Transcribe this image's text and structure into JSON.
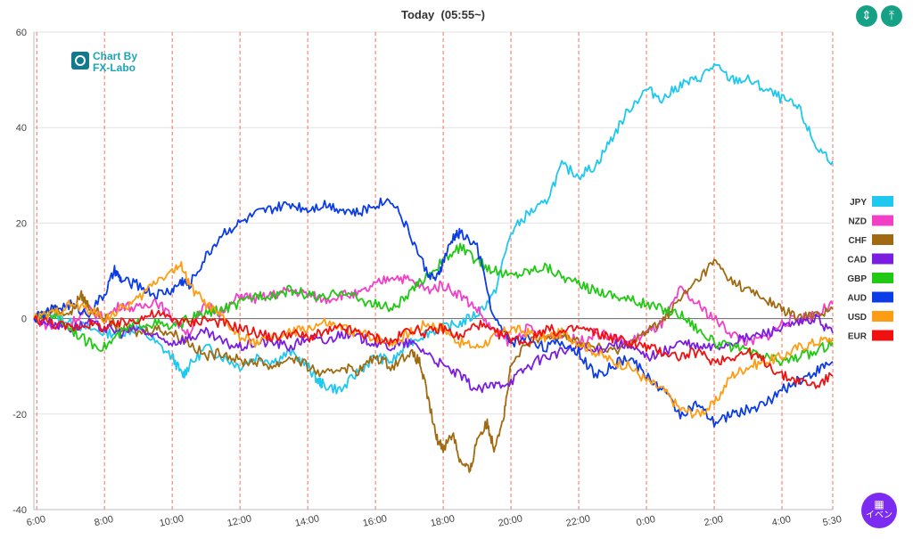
{
  "header": {
    "title": "Today  (05:55~)"
  },
  "logo": {
    "line1": "Chart By",
    "line2": "FX-Labo"
  },
  "toolbar": {
    "compress_icon": "compress-vertical-icon",
    "expand_icon": "expand-vertical-icon"
  },
  "event_button": {
    "label": "イベン",
    "icon": "calendar-icon"
  },
  "chart_data": {
    "type": "line",
    "title": "Today  (05:55~)",
    "xlabel": "",
    "ylabel": "",
    "ylim": [
      -40,
      60
    ],
    "xlim": [
      5.917,
      29.5
    ],
    "y_ticks": [
      60,
      40,
      20,
      0,
      -20,
      -40
    ],
    "x_ticks": [
      {
        "x": 6,
        "label": "6:00"
      },
      {
        "x": 8,
        "label": "8:00"
      },
      {
        "x": 10,
        "label": "10:00"
      },
      {
        "x": 12,
        "label": "12:00"
      },
      {
        "x": 14,
        "label": "14:00"
      },
      {
        "x": 16,
        "label": "16:00"
      },
      {
        "x": 18,
        "label": "18:00"
      },
      {
        "x": 20,
        "label": "20:00"
      },
      {
        "x": 22,
        "label": "22:00"
      },
      {
        "x": 24,
        "label": "0:00"
      },
      {
        "x": 26,
        "label": "2:00"
      },
      {
        "x": 28,
        "label": "4:00"
      },
      {
        "x": 29.5,
        "label": "5:30"
      }
    ],
    "vertical_gridlines": "dashed red at each x tick",
    "legend_position": "right",
    "series": [
      {
        "name": "JPY",
        "color": "#1ec8ee",
        "x": [
          5.92,
          6.5,
          7,
          7.5,
          8,
          8.5,
          9,
          9.5,
          10,
          10.3,
          10.5,
          11,
          11.5,
          12,
          12.5,
          13,
          13.5,
          14,
          14.3,
          14.5,
          15,
          15.5,
          16,
          16.5,
          17,
          17.5,
          18,
          18.5,
          19,
          19.5,
          20,
          20.5,
          21,
          21.5,
          22,
          22.5,
          23,
          23.5,
          24,
          24.5,
          25,
          25.5,
          26,
          26.5,
          27,
          27.5,
          28,
          28.5,
          29,
          29.5
        ],
        "y": [
          0,
          1,
          -1,
          -2,
          -3,
          -3,
          -2,
          -5,
          -8,
          -12,
          -10,
          -6,
          -8,
          -10,
          -8,
          -9,
          -7,
          -10,
          -13,
          -14,
          -15,
          -11,
          -8,
          -9,
          -5,
          -3,
          -2,
          -1,
          1,
          5,
          18,
          22,
          24,
          32,
          30,
          32,
          38,
          44,
          48,
          46,
          49,
          50,
          53,
          50,
          50,
          48,
          46,
          44,
          36,
          33
        ]
      },
      {
        "name": "NZD",
        "color": "#f23fc8",
        "x": [
          5.92,
          6.5,
          7,
          7.5,
          8,
          8.5,
          9,
          9.5,
          10,
          10.5,
          11,
          11.5,
          12,
          12.5,
          13,
          13.5,
          14,
          14.5,
          15,
          15.5,
          16,
          16.5,
          17,
          17.5,
          18,
          18.5,
          19,
          19.5,
          20,
          20.5,
          21,
          21.5,
          22,
          22.5,
          23,
          23.5,
          24,
          24.5,
          25,
          25.5,
          26,
          26.5,
          27,
          27.5,
          28,
          28.5,
          29,
          29.5
        ],
        "y": [
          0,
          -2,
          -1,
          2,
          0,
          3,
          2,
          4,
          0,
          -3,
          3,
          1,
          5,
          4,
          5,
          6,
          5,
          4,
          5,
          5,
          7,
          9,
          8,
          6,
          7,
          5,
          2,
          -3,
          -5,
          -2,
          -4,
          -3,
          -5,
          -3,
          -4,
          -5,
          -3,
          -1,
          6,
          3,
          0,
          -3,
          -5,
          -4,
          -1,
          0,
          1,
          3
        ]
      },
      {
        "name": "CHF",
        "color": "#a16a10",
        "x": [
          5.92,
          6.5,
          7,
          7.3,
          7.5,
          8,
          8.5,
          9,
          9.5,
          10,
          10.5,
          11,
          11.5,
          12,
          12.5,
          13,
          13.5,
          14,
          14.5,
          15,
          15.5,
          16,
          16.5,
          17,
          17.3,
          17.5,
          17.8,
          18,
          18.3,
          18.5,
          18.8,
          19,
          19.3,
          19.5,
          19.8,
          20,
          20.5,
          21,
          21.5,
          22,
          22.5,
          23,
          23.5,
          24,
          24.5,
          25,
          25.5,
          26,
          26.5,
          27,
          27.5,
          28,
          28.5,
          29,
          29.5
        ],
        "y": [
          0,
          2,
          1,
          5,
          3,
          0,
          -2,
          -3,
          -2,
          -3,
          -5,
          -8,
          -7,
          -9,
          -9,
          -10,
          -8,
          -10,
          -12,
          -10,
          -11,
          -8,
          -10,
          -7,
          -9,
          -15,
          -25,
          -27,
          -24,
          -30,
          -32,
          -25,
          -22,
          -27,
          -20,
          -10,
          -5,
          -4,
          -3,
          -5,
          -6,
          -7,
          -5,
          -3,
          0,
          4,
          8,
          12,
          8,
          6,
          4,
          2,
          0,
          1,
          2
        ]
      },
      {
        "name": "CAD",
        "color": "#7a1de0",
        "x": [
          5.92,
          6.5,
          7,
          7.5,
          8,
          8.5,
          9,
          9.5,
          10,
          10.5,
          11,
          11.5,
          12,
          12.5,
          13,
          13.5,
          14,
          14.5,
          15,
          15.5,
          16,
          16.5,
          17,
          17.5,
          18,
          18.5,
          19,
          19.5,
          20,
          20.5,
          21,
          21.5,
          22,
          22.5,
          23,
          23.5,
          24,
          24.5,
          25,
          25.5,
          26,
          26.5,
          27,
          27.5,
          28,
          28.5,
          29,
          29.5
        ],
        "y": [
          0,
          -1,
          -2,
          -1,
          -2,
          -3,
          -2,
          -4,
          -5,
          -4,
          -3,
          -5,
          -6,
          -5,
          -5,
          -6,
          -4,
          -5,
          -3,
          -4,
          -5,
          -6,
          -5,
          -7,
          -10,
          -12,
          -15,
          -14,
          -13,
          -10,
          -8,
          -7,
          -6,
          -7,
          -5,
          -6,
          -8,
          -7,
          -5,
          -6,
          -6,
          -5,
          -4,
          -3,
          -2,
          -1,
          0,
          -3
        ]
      },
      {
        "name": "GBP",
        "color": "#21c914",
        "x": [
          5.92,
          6.5,
          7,
          7.5,
          8,
          8.5,
          9,
          9.5,
          10,
          10.5,
          11,
          11.5,
          12,
          12.5,
          13,
          13.5,
          14,
          14.5,
          15,
          15.5,
          16,
          16.5,
          17,
          17.5,
          18,
          18.5,
          19,
          19.5,
          20,
          20.5,
          21,
          21.5,
          22,
          22.5,
          23,
          23.5,
          24,
          24.5,
          25,
          25.5,
          26,
          26.5,
          27,
          27.5,
          28,
          28.5,
          29,
          29.5
        ],
        "y": [
          0,
          1,
          -2,
          -5,
          -6,
          -3,
          -1,
          -1,
          -2,
          0,
          1,
          2,
          3,
          5,
          5,
          6,
          5,
          4,
          6,
          4,
          3,
          2,
          5,
          9,
          12,
          15,
          12,
          10,
          9,
          10,
          11,
          9,
          7,
          6,
          5,
          4,
          3,
          2,
          1,
          -2,
          -5,
          -6,
          -7,
          -8,
          -9,
          -8,
          -7,
          -5
        ]
      },
      {
        "name": "AUD",
        "color": "#0b3ce8",
        "x": [
          5.92,
          6.5,
          7,
          7.5,
          8,
          8.3,
          8.5,
          9,
          9.5,
          10,
          10.3,
          10.5,
          11,
          11.5,
          12,
          12.5,
          13,
          13.5,
          14,
          14.5,
          15,
          15.5,
          16,
          16.5,
          17,
          17.5,
          17.8,
          18,
          18.3,
          18.5,
          19,
          19.5,
          20,
          20.5,
          21,
          21.5,
          22,
          22.5,
          23,
          23.5,
          24,
          24.5,
          25,
          25.5,
          26,
          26.5,
          27,
          27.5,
          28,
          28.5,
          29,
          29.5
        ],
        "y": [
          0,
          2,
          3,
          1,
          5,
          10,
          8,
          7,
          5,
          6,
          8,
          7,
          13,
          18,
          20,
          22,
          23,
          24,
          23,
          24,
          23,
          22,
          24,
          25,
          18,
          10,
          8,
          12,
          17,
          18,
          15,
          0,
          -5,
          -4,
          -6,
          -5,
          -7,
          -12,
          -10,
          -8,
          -12,
          -15,
          -20,
          -18,
          -22,
          -20,
          -19,
          -18,
          -15,
          -13,
          -11,
          -9
        ]
      },
      {
        "name": "USD",
        "color": "#ff9d12",
        "x": [
          5.92,
          6.5,
          7,
          7.5,
          8,
          8.5,
          9,
          9.5,
          10,
          10.3,
          10.5,
          11,
          11.5,
          12,
          12.5,
          13,
          13.5,
          14,
          14.5,
          15,
          15.5,
          16,
          16.5,
          17,
          17.5,
          18,
          18.5,
          19,
          19.5,
          20,
          20.5,
          21,
          21.5,
          22,
          22.5,
          23,
          23.5,
          24,
          24.5,
          25,
          25.5,
          26,
          26.5,
          27,
          27.5,
          28,
          28.5,
          29,
          29.5
        ],
        "y": [
          0,
          1,
          3,
          2,
          0,
          2,
          4,
          8,
          10,
          11,
          7,
          3,
          0,
          -4,
          -5,
          -4,
          -3,
          -2,
          -1,
          -2,
          -3,
          -4,
          -5,
          -3,
          -1,
          -2,
          -5,
          -6,
          -4,
          -2,
          -3,
          -4,
          -3,
          -5,
          -7,
          -9,
          -10,
          -13,
          -15,
          -19,
          -20,
          -18,
          -12,
          -10,
          -9,
          -8,
          -6,
          -5,
          -4
        ]
      },
      {
        "name": "EUR",
        "color": "#f01010",
        "x": [
          5.92,
          6.5,
          7,
          7.5,
          8,
          8.5,
          9,
          9.5,
          10,
          10.5,
          11,
          11.5,
          12,
          12.5,
          13,
          13.5,
          14,
          14.5,
          15,
          15.5,
          16,
          16.5,
          17,
          17.5,
          18,
          18.5,
          19,
          19.5,
          20,
          20.5,
          21,
          21.5,
          22,
          22.5,
          23,
          23.5,
          24,
          24.5,
          25,
          25.5,
          26,
          26.5,
          27,
          27.5,
          28,
          28.5,
          29,
          29.5
        ],
        "y": [
          0,
          -1,
          -2,
          -1,
          -2,
          -1,
          0,
          1,
          0,
          -1,
          0,
          -1,
          -2,
          -3,
          -4,
          -3,
          -4,
          -3,
          -2,
          -3,
          -4,
          -5,
          -2,
          -3,
          -2,
          -4,
          -1,
          -3,
          -4,
          -5,
          -2,
          -3,
          -2,
          -3,
          -4,
          -5,
          -6,
          -7,
          -8,
          -7,
          -9,
          -8,
          -7,
          -9,
          -12,
          -13,
          -14,
          -12
        ]
      }
    ]
  }
}
